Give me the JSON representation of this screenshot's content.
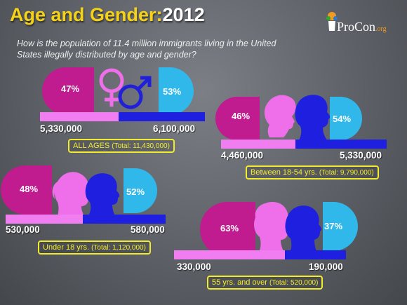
{
  "title": {
    "main": "Age and Gender:",
    "year": "2012"
  },
  "subtitle": "How is the population of 11.4 million immigrants living in the United States illegally distributed by age and gender?",
  "logo": {
    "text": "ProCon",
    "suffix": ".org",
    "icon": "procon-logo-icon"
  },
  "colors": {
    "female": "#c01b8f",
    "female_bar": "#f07ef0",
    "male": "#1f1fe0",
    "male_badge": "#30b8ea"
  },
  "groups": {
    "all": {
      "female_pct": "47%",
      "male_pct": "53%",
      "female_count": "5,330,000",
      "male_count": "6,100,000",
      "female_share": 0.47,
      "caption_label": "ALL AGES",
      "caption_total": "(Total: 11,430,000)"
    },
    "adult": {
      "female_pct": "46%",
      "male_pct": "54%",
      "female_count": "4,460,000",
      "male_count": "5,330,000",
      "female_share": 0.46,
      "caption_label": "Between 18-54 yrs.",
      "caption_total": "(Total: 9,790,000)"
    },
    "minor": {
      "female_pct": "48%",
      "male_pct": "52%",
      "female_count": "530,000",
      "male_count": "580,000",
      "female_share": 0.48,
      "caption_label": "Under 18 yrs.",
      "caption_total": "(Total: 1,120,000)"
    },
    "senior": {
      "female_pct": "63%",
      "male_pct": "37%",
      "female_count": "330,000",
      "male_count": "190,000",
      "female_share": 0.63,
      "caption_label": "55 yrs. and over",
      "caption_total": "(Total: 520,000)"
    }
  }
}
